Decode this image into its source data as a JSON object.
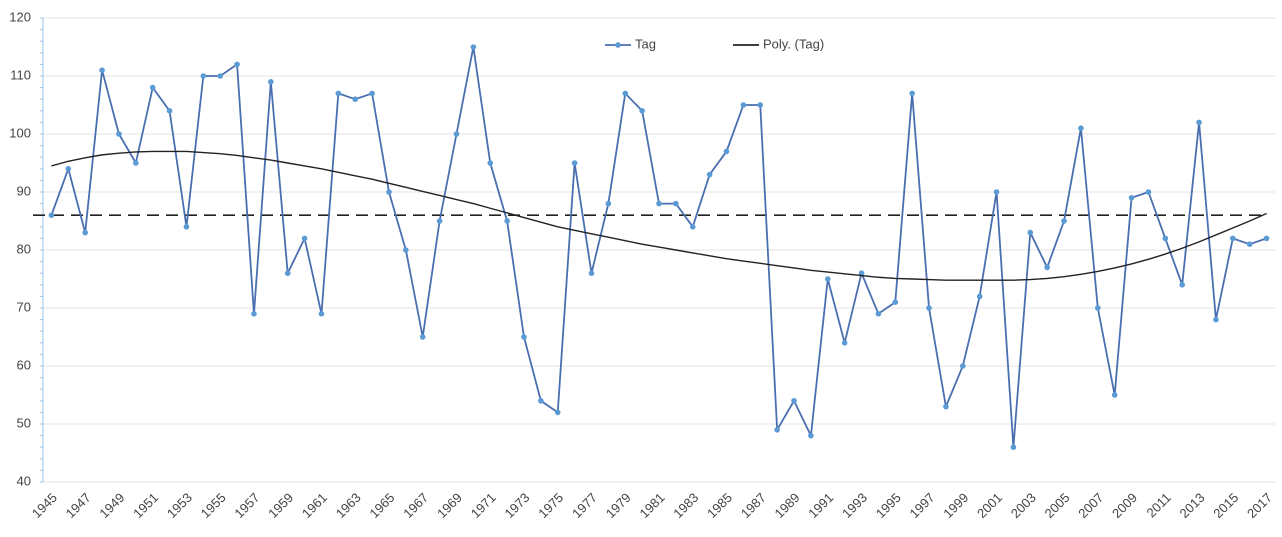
{
  "chart_data": {
    "type": "line",
    "categories": [
      "1945",
      null,
      "1947",
      null,
      "1949",
      null,
      "1951",
      null,
      "1953",
      null,
      "1955",
      null,
      "1957",
      null,
      "1959",
      null,
      "1961",
      null,
      "1963",
      null,
      "1965",
      null,
      "1967",
      null,
      "1969",
      null,
      "1971",
      null,
      "1973",
      null,
      "1975",
      null,
      "1977",
      null,
      "1979",
      null,
      "1981",
      null,
      "1983",
      null,
      "1985",
      null,
      "1987",
      null,
      "1989",
      null,
      "1991",
      null,
      "1993",
      null,
      "1995",
      null,
      "1997",
      null,
      "1999",
      null,
      "2001",
      null,
      "2003",
      null,
      "2005",
      null,
      "2007",
      null,
      "2009",
      null,
      "2011",
      null,
      "2013",
      null,
      "2015",
      null,
      "2017"
    ],
    "series": [
      {
        "name": "Tag",
        "color": "#4a6fb0",
        "marker_color": "#5b9bd5",
        "values": [
          86,
          94,
          83,
          111,
          100,
          95,
          108,
          104,
          84,
          110,
          110,
          112,
          69,
          109,
          76,
          82,
          69,
          107,
          106,
          107,
          90,
          80,
          65,
          85,
          100,
          115,
          95,
          85,
          65,
          54,
          52,
          95,
          76,
          88,
          107,
          104,
          88,
          88,
          84,
          93,
          97,
          105,
          105,
          49,
          54,
          48,
          75,
          64,
          76,
          69,
          71,
          107,
          70,
          53,
          60,
          72,
          90,
          46,
          83,
          77,
          85,
          101,
          70,
          55,
          89,
          90,
          82,
          74,
          102,
          68,
          82,
          81,
          82
        ]
      },
      {
        "name": "Poly. (Tag)",
        "color": "#222222",
        "values": [
          94.5,
          95.3,
          95.9,
          96.4,
          96.7,
          96.9,
          97,
          97,
          97,
          96.8,
          96.6,
          96.3,
          95.9,
          95.5,
          95,
          94.5,
          94,
          93.4,
          92.8,
          92.2,
          91.5,
          90.8,
          90.1,
          89.4,
          88.7,
          88,
          87.2,
          86.4,
          85.6,
          84.8,
          84,
          83.4,
          82.8,
          82.2,
          81.6,
          81,
          80.5,
          80,
          79.5,
          79,
          78.5,
          78.1,
          77.7,
          77.3,
          76.9,
          76.5,
          76.2,
          75.9,
          75.6,
          75.3,
          75.1,
          75,
          74.9,
          74.8,
          74.8,
          74.8,
          74.8,
          74.8,
          74.9,
          75.1,
          75.4,
          75.8,
          76.3,
          76.9,
          77.6,
          78.4,
          79.3,
          80.3,
          81.4,
          82.6,
          83.8,
          85,
          86.3
        ]
      }
    ],
    "reference_line": 86,
    "ylim": [
      40,
      120
    ],
    "yticks": [
      40,
      50,
      60,
      70,
      80,
      90,
      100,
      110,
      120
    ],
    "grid": true
  }
}
